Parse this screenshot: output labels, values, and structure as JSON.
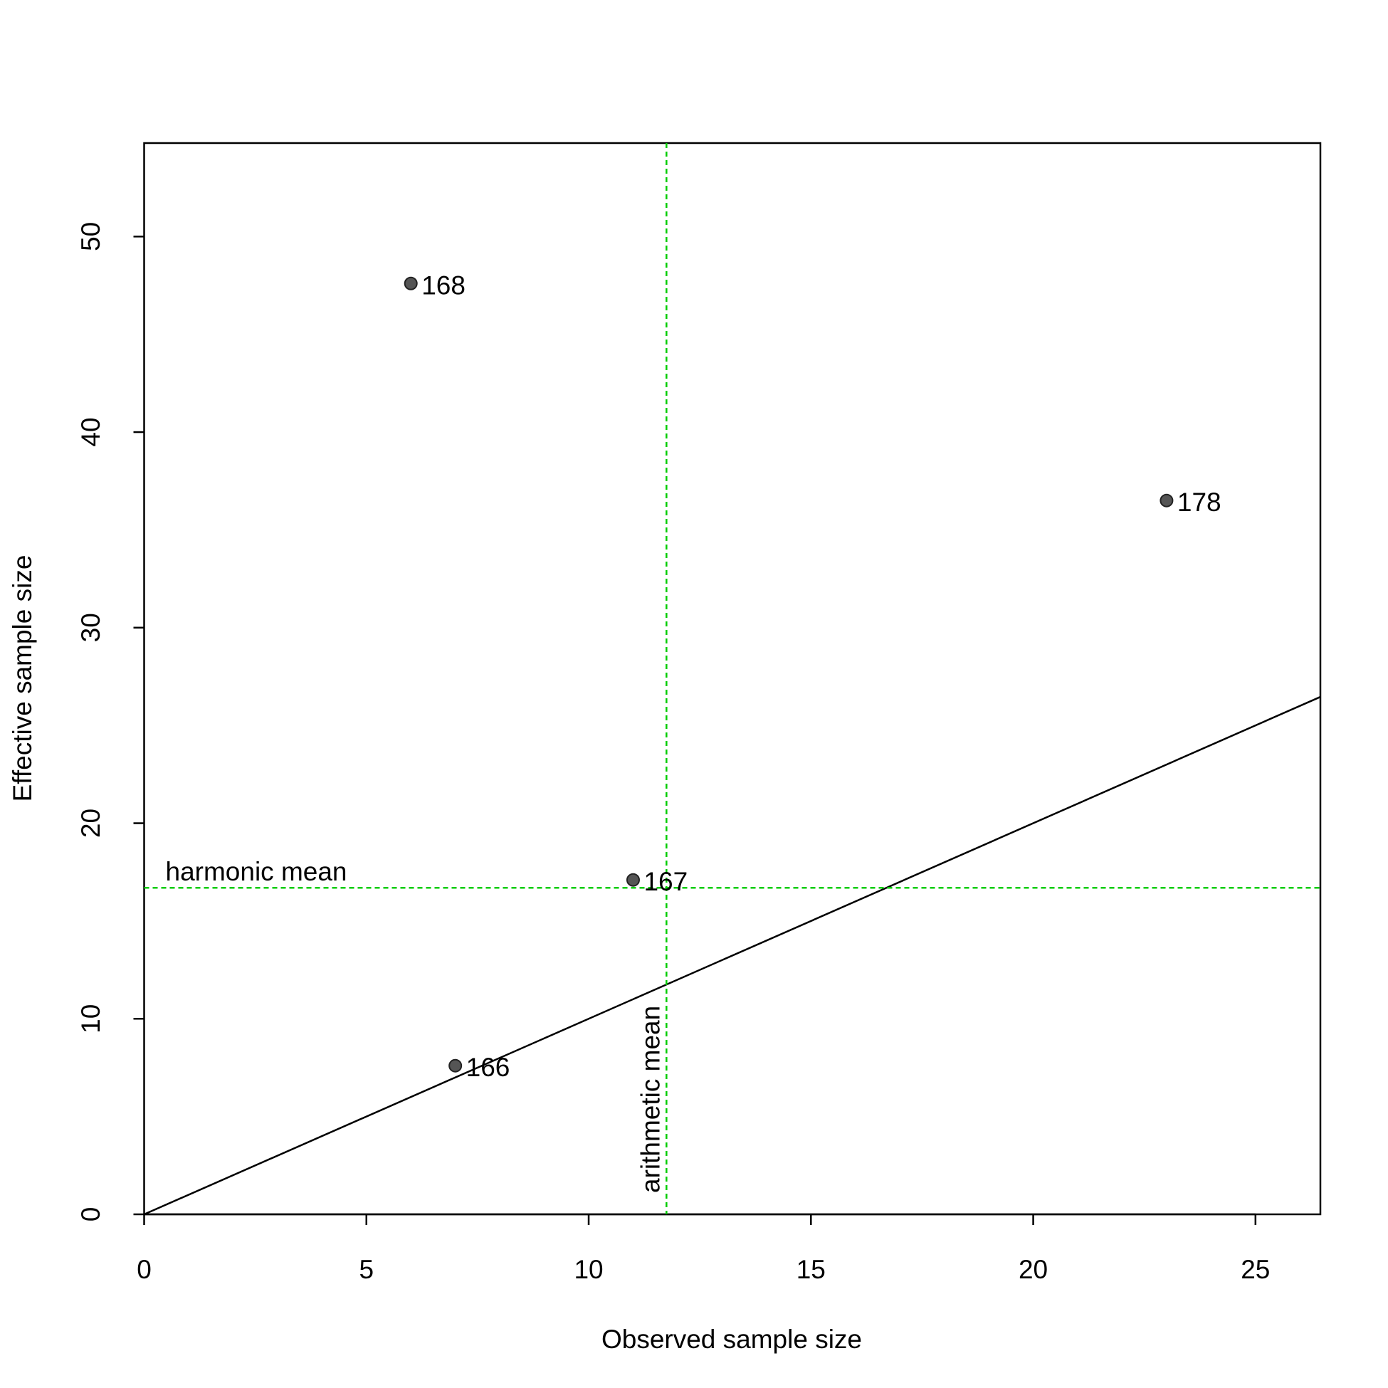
{
  "chart_data": {
    "type": "scatter",
    "xlabel": "Observed sample size",
    "ylabel": "Effective sample size",
    "x": [
      6,
      23,
      11,
      7
    ],
    "series": [
      {
        "values": [
          47.6,
          36.5,
          17.1,
          7.6
        ],
        "color": "#555555",
        "point_labels": [
          "168",
          "178",
          "167",
          "166"
        ]
      }
    ],
    "xlim": [
      0,
      26.46
    ],
    "ylim": [
      0,
      54.78
    ],
    "xticks": [
      0,
      5,
      10,
      15,
      20,
      25
    ],
    "yticks": [
      0,
      10,
      20,
      30,
      40,
      50
    ],
    "hline": {
      "value": 16.7,
      "label": "harmonic mean",
      "color": "#00cc00"
    },
    "vline": {
      "value": 11.75,
      "label": "arithmetic mean",
      "color": "#00cc00"
    },
    "abline": {
      "intercept": 0,
      "slope": 1,
      "color": "#000000"
    }
  }
}
